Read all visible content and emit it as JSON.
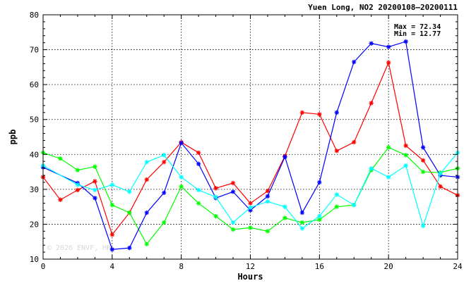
{
  "chart_data": {
    "type": "line",
    "title": "Yuen Long, NO2 20200108–20200111",
    "xlabel": "Hours",
    "ylabel": "ppb",
    "xlim": [
      0,
      24
    ],
    "ylim": [
      10,
      80
    ],
    "x_ticks": [
      0,
      4,
      8,
      12,
      16,
      20,
      24
    ],
    "y_ticks": [
      10,
      20,
      30,
      40,
      50,
      60,
      70,
      80
    ],
    "grid": true,
    "stats": {
      "max_label": "Max = 72.34",
      "min_label": "Min = 12.77"
    },
    "watermark": "© 2026 ENVF, HK",
    "x": [
      0,
      1,
      2,
      3,
      4,
      5,
      6,
      7,
      8,
      9,
      10,
      11,
      12,
      13,
      14,
      15,
      16,
      17,
      18,
      19,
      20,
      21,
      22,
      23,
      24
    ],
    "series": [
      {
        "color": "#ff0000",
        "values": [
          33.5,
          27.0,
          29.8,
          32.3,
          17.0,
          23.3,
          32.8,
          37.8,
          43.5,
          40.5,
          30.3,
          31.8,
          26.0,
          29.5,
          39.5,
          52.0,
          51.5,
          41.0,
          43.5,
          54.7,
          66.3,
          42.5,
          38.3,
          30.8,
          28.3
        ]
      },
      {
        "color": "#00ff00",
        "values": [
          40.5,
          38.8,
          35.5,
          36.5,
          25.5,
          23.3,
          14.3,
          20.5,
          30.8,
          26.0,
          22.3,
          18.5,
          19.0,
          18.0,
          21.8,
          20.5,
          21.3,
          25.0,
          25.5,
          35.5,
          42.0,
          39.8,
          35.0,
          34.8,
          36.0
        ]
      },
      {
        "color": "#0000ff",
        "values": [
          36.3,
          null,
          31.8,
          27.5,
          12.77,
          13.2,
          23.3,
          29.0,
          43.3,
          37.3,
          27.5,
          29.3,
          24.0,
          28.0,
          39.3,
          23.3,
          32.0,
          52.0,
          66.5,
          71.8,
          70.8,
          72.34,
          42.0,
          34.0,
          33.5
        ]
      },
      {
        "color": "#00ffff",
        "values": [
          36.8,
          null,
          31.3,
          29.8,
          31.3,
          29.3,
          37.8,
          39.8,
          33.5,
          29.8,
          27.8,
          20.5,
          24.8,
          26.5,
          25.0,
          18.8,
          22.3,
          28.5,
          25.5,
          36.0,
          33.5,
          36.8,
          19.5,
          34.5,
          40.5
        ]
      }
    ]
  }
}
